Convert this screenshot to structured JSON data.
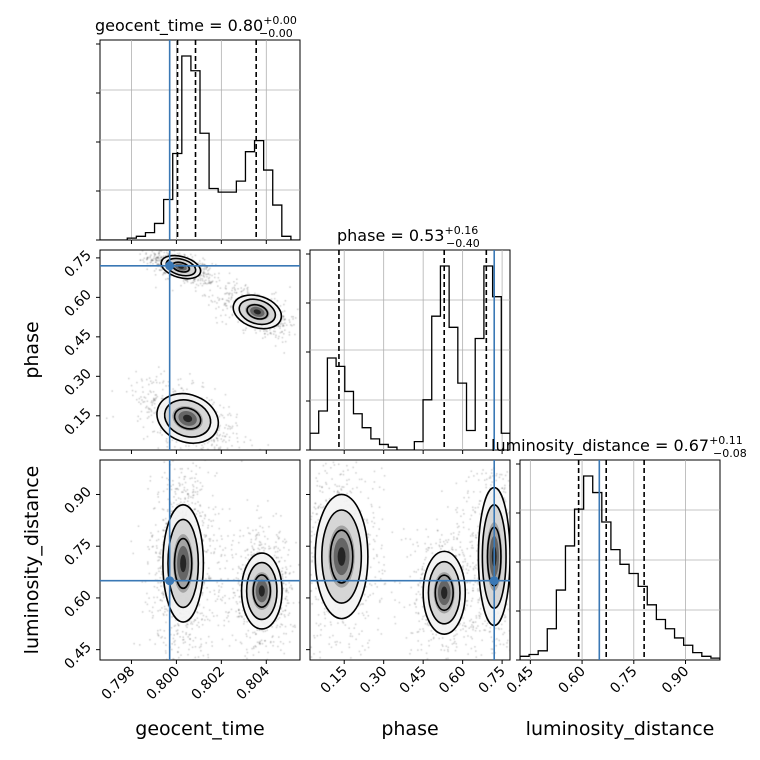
{
  "figure": {
    "type": "corner_plot",
    "truth_color": "#3a78b5",
    "contour_color": "#000000"
  },
  "titles": {
    "geocent_time": {
      "name": "geocent_time = 0.80",
      "sup": "+0.00",
      "sub": "−0.00"
    },
    "phase": {
      "name": "phase = 0.53",
      "sup": "+0.16",
      "sub": "−0.40"
    },
    "luminosity_distance": {
      "name": "luminosity_distance = 0.67",
      "sup": "+0.11",
      "sub": "−0.08"
    }
  },
  "axis_labels": {
    "geocent_time": "geocent_time",
    "phase": "phase",
    "luminosity_distance": "luminosity_distance"
  },
  "ticks": {
    "geocent_time": {
      "values": [
        0.798,
        0.8,
        0.802,
        0.804
      ],
      "labels": [
        "0.798",
        "0.800",
        "0.802",
        "0.804"
      ]
    },
    "phase": {
      "values": [
        0.15,
        0.3,
        0.45,
        0.6,
        0.75
      ],
      "labels": [
        "0.15",
        "0.30",
        "0.45",
        "0.60",
        "0.75"
      ]
    },
    "luminosity_distance": {
      "values": [
        0.45,
        0.6,
        0.75,
        0.9
      ],
      "labels": [
        "0.45",
        "0.60",
        "0.75",
        "0.90"
      ]
    }
  },
  "chart_data": {
    "type": "corner",
    "parameters": [
      "geocent_time",
      "phase",
      "luminosity_distance"
    ],
    "ranges": {
      "geocent_time": [
        0.7966,
        0.8055
      ],
      "phase": [
        0.02,
        0.78
      ],
      "luminosity_distance": [
        0.42,
        1.0
      ]
    },
    "truths": {
      "geocent_time": 0.7997,
      "phase": 0.72,
      "luminosity_distance": 0.65
    },
    "quantiles": {
      "geocent_time": [
        0.80005,
        0.80085,
        0.80355
      ],
      "phase": [
        0.13,
        0.53,
        0.69
      ],
      "luminosity_distance": [
        0.59,
        0.67,
        0.78
      ]
    },
    "histograms": {
      "geocent_time": [
        0,
        0,
        0,
        1,
        2,
        4,
        9,
        22,
        47,
        100,
        92,
        58,
        28,
        26,
        26,
        32,
        48,
        54,
        38,
        19,
        2,
        0
      ],
      "phase": [
        6,
        14,
        33,
        30,
        21,
        13,
        8,
        4,
        2,
        1,
        0,
        0,
        3,
        18,
        48,
        66,
        44,
        24,
        7,
        40,
        66,
        55,
        6
      ],
      "luminosity_distance": [
        2,
        3,
        5,
        17,
        38,
        62,
        82,
        100,
        91,
        75,
        60,
        52,
        47,
        40,
        30,
        22,
        17,
        12,
        8,
        4,
        2,
        1
      ]
    },
    "modes_2d": {
      "phase_vs_geocent_time": [
        {
          "x": 0.8002,
          "y": 0.715,
          "sx": 0.00045,
          "sy": 0.02,
          "rho": -0.6,
          "w": 1.0
        },
        {
          "x": 0.8036,
          "y": 0.545,
          "sx": 0.00055,
          "sy": 0.03,
          "rho": -0.55,
          "w": 0.8
        },
        {
          "x": 0.8005,
          "y": 0.14,
          "sx": 0.0007,
          "sy": 0.045,
          "rho": -0.55,
          "w": 0.9
        }
      ],
      "luminosity_distance_vs_geocent_time": [
        {
          "x": 0.8003,
          "y": 0.7,
          "sx": 0.00045,
          "sy": 0.085,
          "rho": 0.0,
          "w": 1.0
        },
        {
          "x": 0.8038,
          "y": 0.62,
          "sx": 0.00045,
          "sy": 0.055,
          "rho": 0.0,
          "w": 0.65
        }
      ],
      "luminosity_distance_vs_phase": [
        {
          "x": 0.14,
          "y": 0.72,
          "sx": 0.05,
          "sy": 0.09,
          "rho": 0.0,
          "w": 0.9
        },
        {
          "x": 0.53,
          "y": 0.615,
          "sx": 0.04,
          "sy": 0.06,
          "rho": 0.0,
          "w": 0.8
        },
        {
          "x": 0.72,
          "y": 0.72,
          "sx": 0.03,
          "sy": 0.1,
          "rho": 0.0,
          "w": 0.9
        }
      ]
    }
  }
}
